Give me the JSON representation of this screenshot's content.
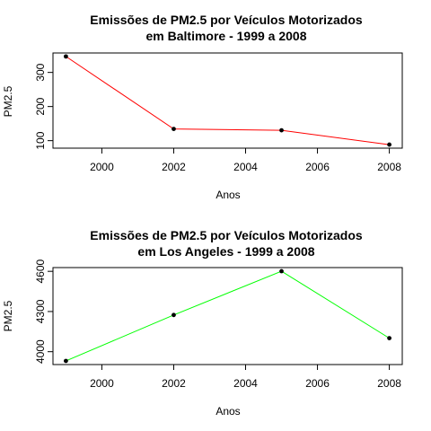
{
  "chart_data": [
    {
      "type": "line",
      "title": "Emissões de PM2.5 por Veículos Motorizados",
      "subtitle": "em Baltimore - 1999 a 2008",
      "xlabel": "Anos",
      "ylabel": "PM2.5",
      "x": [
        1999,
        2002,
        2005,
        2008
      ],
      "values": [
        346.8,
        134.3,
        130.4,
        88.3
      ],
      "xticks": [
        "2000",
        "2002",
        "2004",
        "2006",
        "2008"
      ],
      "yticks": [
        "100",
        "200",
        "300"
      ],
      "xlim": [
        1998.64,
        2008.36
      ],
      "ylim": [
        78,
        357
      ],
      "line_color": "#ff0000",
      "grid": false
    },
    {
      "type": "line",
      "title": "Emissões de PM2.5 por Veículos Motorizados",
      "subtitle": "em Los Angeles - 1999 a 2008",
      "xlabel": "Anos",
      "ylabel": "PM2.5",
      "x": [
        1999,
        2002,
        2005,
        2008
      ],
      "values": [
        3931,
        4274,
        4601,
        4101
      ],
      "xticks": [
        "2000",
        "2002",
        "2004",
        "2006",
        "2008"
      ],
      "yticks": [
        "4000",
        "4300",
        "4600"
      ],
      "xlim": [
        1998.64,
        2008.36
      ],
      "ylim": [
        3904,
        4628
      ],
      "line_color": "#00ff00",
      "grid": false
    }
  ]
}
